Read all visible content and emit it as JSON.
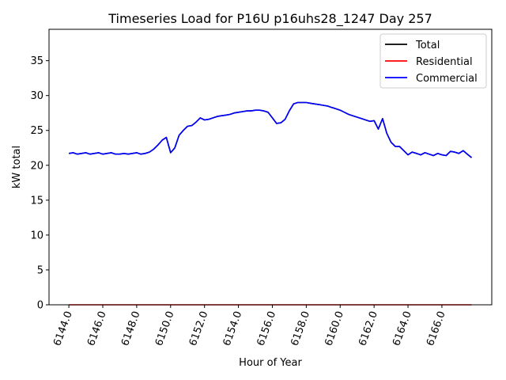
{
  "chart_data": {
    "type": "line",
    "title": "Timeseries Load for P16U p16uhs28_1247  Day 257",
    "xlabel": "Hour of Year",
    "ylabel": "kW total",
    "xlim": [
      6142.83,
      6168.94
    ],
    "ylim": [
      0,
      39.5
    ],
    "xticks": [
      6144,
      6146,
      6148,
      6150,
      6152,
      6154,
      6156,
      6158,
      6160,
      6162,
      6164,
      6166
    ],
    "xtick_labels": [
      "6144.0",
      "6146.0",
      "6148.0",
      "6150.0",
      "6152.0",
      "6154.0",
      "6156.0",
      "6158.0",
      "6160.0",
      "6162.0",
      "6164.0",
      "6166.0"
    ],
    "yticks": [
      0,
      5,
      10,
      15,
      20,
      25,
      30,
      35
    ],
    "ytick_labels": [
      "0",
      "5",
      "10",
      "15",
      "20",
      "25",
      "30",
      "35"
    ],
    "grid": false,
    "legend_position": "top-right",
    "x": [
      6144,
      6144.25,
      6144.5,
      6144.75,
      6145,
      6145.25,
      6145.5,
      6145.75,
      6146,
      6146.25,
      6146.5,
      6146.75,
      6147,
      6147.25,
      6147.5,
      6147.75,
      6148,
      6148.25,
      6148.5,
      6148.75,
      6149,
      6149.25,
      6149.5,
      6149.75,
      6150,
      6150.25,
      6150.5,
      6150.75,
      6151,
      6151.25,
      6151.5,
      6151.75,
      6152,
      6152.25,
      6152.5,
      6152.75,
      6153,
      6153.25,
      6153.5,
      6153.75,
      6154,
      6154.25,
      6154.5,
      6154.75,
      6155,
      6155.25,
      6155.5,
      6155.75,
      6156,
      6156.25,
      6156.5,
      6156.75,
      6157,
      6157.25,
      6157.5,
      6157.75,
      6158,
      6158.25,
      6158.5,
      6158.75,
      6159,
      6159.25,
      6159.5,
      6159.75,
      6160,
      6160.25,
      6160.5,
      6160.75,
      6161,
      6161.25,
      6161.5,
      6161.75,
      6162,
      6162.25,
      6162.5,
      6162.75,
      6163,
      6163.25,
      6163.5,
      6163.75,
      6164,
      6164.25,
      6164.5,
      6164.75,
      6165,
      6165.25,
      6165.5,
      6165.75,
      6166,
      6166.25,
      6166.5,
      6166.75,
      6167,
      6167.25,
      6167.5,
      6167.75
    ],
    "series": [
      {
        "name": "Total",
        "color": "#000000",
        "values": [
          21.7,
          21.8,
          21.6,
          21.7,
          21.8,
          21.6,
          21.7,
          21.8,
          21.6,
          21.7,
          21.8,
          21.6,
          21.6,
          21.7,
          21.6,
          21.7,
          21.8,
          21.6,
          21.7,
          21.9,
          22.3,
          22.9,
          23.6,
          24.0,
          21.8,
          22.5,
          24.3,
          25.0,
          25.6,
          25.7,
          26.2,
          26.8,
          26.5,
          26.6,
          26.8,
          27.0,
          27.1,
          27.2,
          27.3,
          27.5,
          27.6,
          27.7,
          27.8,
          27.8,
          27.9,
          27.9,
          27.8,
          27.6,
          26.8,
          26.0,
          26.1,
          26.6,
          27.8,
          28.8,
          29.0,
          29.0,
          29.0,
          28.9,
          28.8,
          28.7,
          28.6,
          28.5,
          28.3,
          28.1,
          27.9,
          27.6,
          27.3,
          27.1,
          26.9,
          26.7,
          26.5,
          26.3,
          26.4,
          25.2,
          26.7,
          24.6,
          23.3,
          22.7,
          22.7,
          22.1,
          21.5,
          21.9,
          21.7,
          21.5,
          21.8,
          21.6,
          21.4,
          21.7,
          21.5,
          21.4,
          22.0,
          21.9,
          21.7,
          22.1,
          21.6,
          21.1
        ]
      },
      {
        "name": "Residential",
        "color": "#ff0000",
        "values": [
          0,
          0,
          0,
          0,
          0,
          0,
          0,
          0,
          0,
          0,
          0,
          0,
          0,
          0,
          0,
          0,
          0,
          0,
          0,
          0,
          0,
          0,
          0,
          0,
          0,
          0,
          0,
          0,
          0,
          0,
          0,
          0,
          0,
          0,
          0,
          0,
          0,
          0,
          0,
          0,
          0,
          0,
          0,
          0,
          0,
          0,
          0,
          0,
          0,
          0,
          0,
          0,
          0,
          0,
          0,
          0,
          0,
          0,
          0,
          0,
          0,
          0,
          0,
          0,
          0,
          0,
          0,
          0,
          0,
          0,
          0,
          0,
          0,
          0,
          0,
          0,
          0,
          0,
          0,
          0,
          0,
          0,
          0,
          0,
          0,
          0,
          0,
          0,
          0,
          0,
          0,
          0,
          0,
          0,
          0,
          0
        ]
      },
      {
        "name": "Commercial",
        "color": "#0000ff",
        "values": [
          21.7,
          21.8,
          21.6,
          21.7,
          21.8,
          21.6,
          21.7,
          21.8,
          21.6,
          21.7,
          21.8,
          21.6,
          21.6,
          21.7,
          21.6,
          21.7,
          21.8,
          21.6,
          21.7,
          21.9,
          22.3,
          22.9,
          23.6,
          24.0,
          21.8,
          22.5,
          24.3,
          25.0,
          25.6,
          25.7,
          26.2,
          26.8,
          26.5,
          26.6,
          26.8,
          27.0,
          27.1,
          27.2,
          27.3,
          27.5,
          27.6,
          27.7,
          27.8,
          27.8,
          27.9,
          27.9,
          27.8,
          27.6,
          26.8,
          26.0,
          26.1,
          26.6,
          27.8,
          28.8,
          29.0,
          29.0,
          29.0,
          28.9,
          28.8,
          28.7,
          28.6,
          28.5,
          28.3,
          28.1,
          27.9,
          27.6,
          27.3,
          27.1,
          26.9,
          26.7,
          26.5,
          26.3,
          26.4,
          25.2,
          26.7,
          24.6,
          23.3,
          22.7,
          22.7,
          22.1,
          21.5,
          21.9,
          21.7,
          21.5,
          21.8,
          21.6,
          21.4,
          21.7,
          21.5,
          21.4,
          22.0,
          21.9,
          21.7,
          22.1,
          21.6,
          21.1
        ]
      }
    ]
  }
}
